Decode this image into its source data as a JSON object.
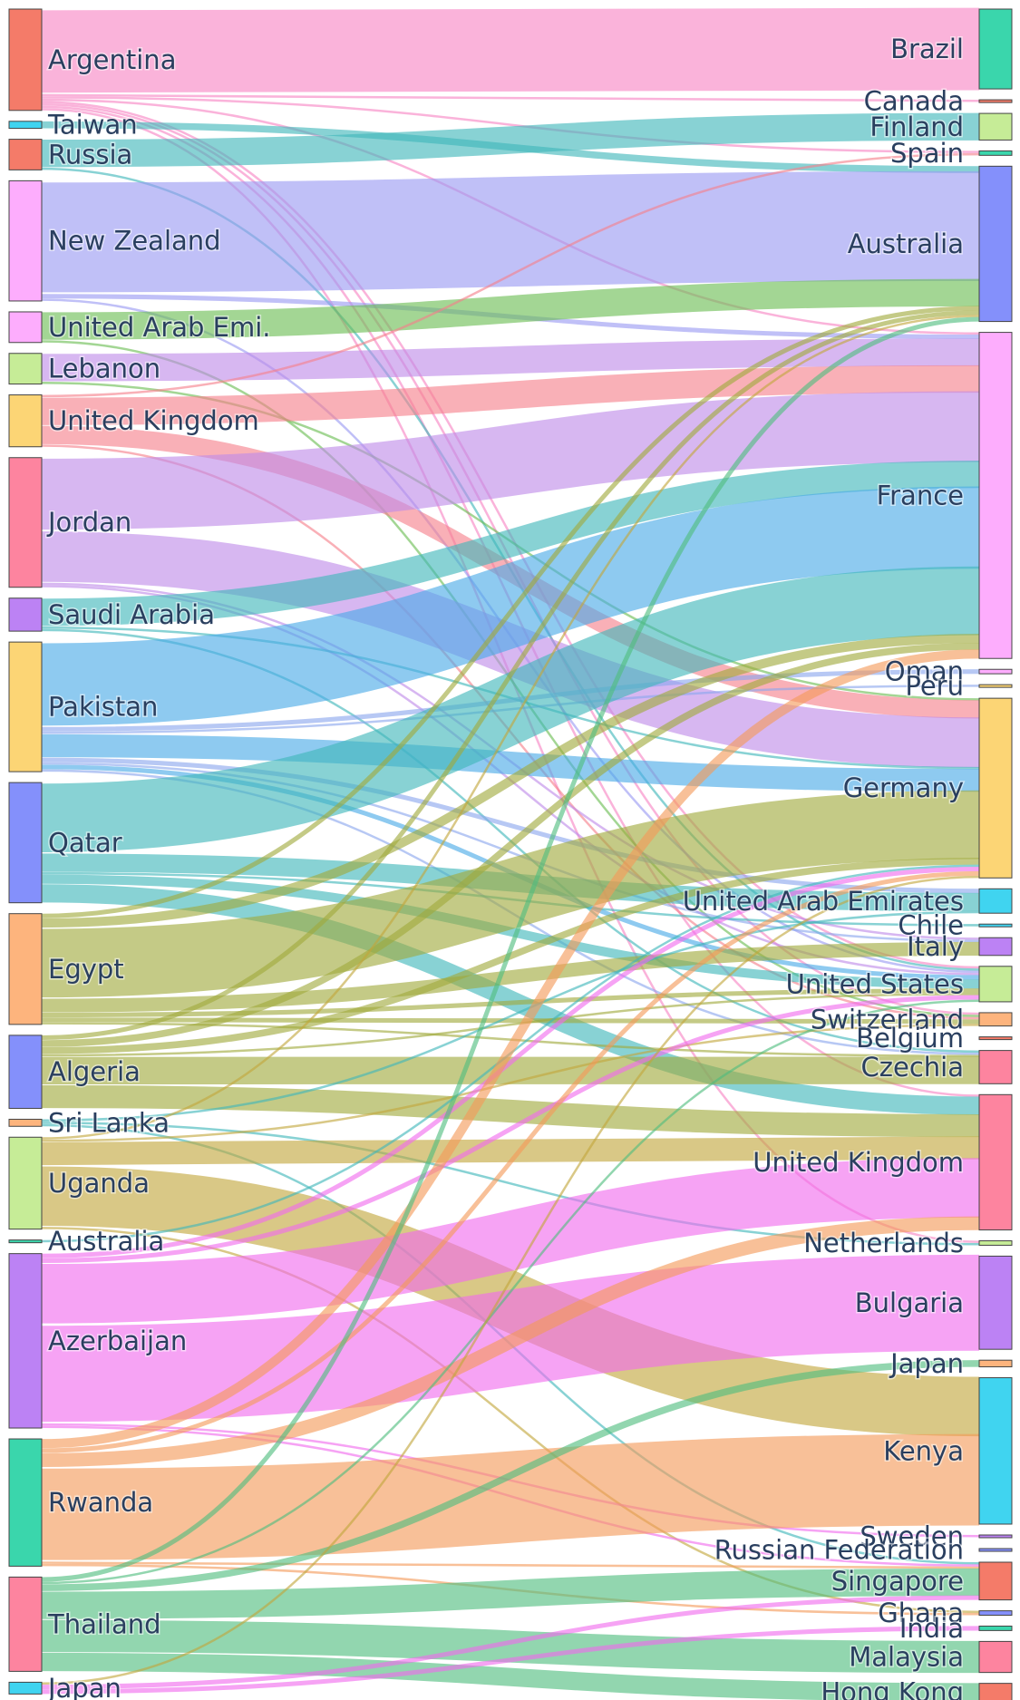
{
  "chart_data": {
    "type": "sankey",
    "title": "",
    "sources": [
      {
        "name": "Argentina",
        "color": "#f47b69"
      },
      {
        "name": "Taiwan",
        "color": "#40d4f0"
      },
      {
        "name": "Russia",
        "color": "#f47b69"
      },
      {
        "name": "New Zealand",
        "color": "#fdadfd"
      },
      {
        "name": "United Arab Emi.",
        "color": "#fdadfd"
      },
      {
        "name": "Lebanon",
        "color": "#c6ec97"
      },
      {
        "name": "United Kingdom",
        "color": "#fcd575"
      },
      {
        "name": "Jordan",
        "color": "#fd849f"
      },
      {
        "name": "Saudi Arabia",
        "color": "#bc82f4"
      },
      {
        "name": "Pakistan",
        "color": "#fcd575"
      },
      {
        "name": "Qatar",
        "color": "#8490fb"
      },
      {
        "name": "Egypt",
        "color": "#fdb47d"
      },
      {
        "name": "Algeria",
        "color": "#8490fb"
      },
      {
        "name": "Sri Lanka",
        "color": "#fdb47d"
      },
      {
        "name": "Uganda",
        "color": "#c6ec97"
      },
      {
        "name": "Australia",
        "color": "#3ad6ac"
      },
      {
        "name": "Azerbaijan",
        "color": "#bc82f4"
      },
      {
        "name": "Rwanda",
        "color": "#3ad6ac"
      },
      {
        "name": "Thailand",
        "color": "#fd849f"
      },
      {
        "name": "Japan",
        "color": "#40d4f0"
      }
    ],
    "targets": [
      {
        "name": "Brazil",
        "color": "#3ad6ac"
      },
      {
        "name": "Canada",
        "color": "#f47b69"
      },
      {
        "name": "Finland",
        "color": "#c6ec97"
      },
      {
        "name": "Spain",
        "color": "#3ad6ac"
      },
      {
        "name": "Australia",
        "color": "#8490fb"
      },
      {
        "name": "France",
        "color": "#fdadfd"
      },
      {
        "name": "Oman",
        "color": "#fdadfd"
      },
      {
        "name": "Peru",
        "color": "#fcd575"
      },
      {
        "name": "Germany",
        "color": "#fcd575"
      },
      {
        "name": "United Arab Emirates",
        "color": "#40d4f0"
      },
      {
        "name": "Chile",
        "color": "#40d4f0"
      },
      {
        "name": "Italy",
        "color": "#bc82f4"
      },
      {
        "name": "United States",
        "color": "#c6ec97"
      },
      {
        "name": "Switzerland",
        "color": "#fdb47d"
      },
      {
        "name": "Belgium",
        "color": "#f47b69"
      },
      {
        "name": "Czechia",
        "color": "#fd849f"
      },
      {
        "name": "United Kingdom",
        "color": "#fd849f"
      },
      {
        "name": "Netherlands",
        "color": "#c6ec97"
      },
      {
        "name": "Bulgaria",
        "color": "#bc82f4"
      },
      {
        "name": "Japan",
        "color": "#fdb47d"
      },
      {
        "name": "Kenya",
        "color": "#40d4f0"
      },
      {
        "name": "Sweden",
        "color": "#bc82f4"
      },
      {
        "name": "Russian Federation",
        "color": "#8490fb"
      },
      {
        "name": "Singapore",
        "color": "#f47b69"
      },
      {
        "name": "Ghana",
        "color": "#8490fb"
      },
      {
        "name": "India",
        "color": "#3ad6ac"
      },
      {
        "name": "Malaysia",
        "color": "#fd849f"
      },
      {
        "name": "Hong Kong",
        "color": "#f47b69"
      }
    ],
    "links": [
      [
        "Argentina",
        "Brazil",
        36,
        "#f785c3"
      ],
      [
        "Argentina",
        "Canada",
        1,
        "#f785c3"
      ],
      [
        "Argentina",
        "Spain",
        1,
        "#f785c3"
      ],
      [
        "Argentina",
        "France",
        1,
        "#f785c3"
      ],
      [
        "Argentina",
        "United States",
        1,
        "#f785c3"
      ],
      [
        "Argentina",
        "Netherlands",
        1,
        "#f785c3"
      ],
      [
        "Argentina",
        "Switzerland",
        1,
        "#f785c3"
      ],
      [
        "Argentina",
        "United Kingdom",
        1,
        "#f785c3"
      ],
      [
        "Taiwan",
        "Australia",
        3,
        "#3fb6ba"
      ],
      [
        "Russia",
        "Finland",
        12,
        "#3fb6ba"
      ],
      [
        "Russia",
        "United States",
        1,
        "#3fb6ba"
      ],
      [
        "New Zealand",
        "Australia",
        48,
        "#9a9af2"
      ],
      [
        "New Zealand",
        "France",
        2,
        "#9a9af2"
      ],
      [
        "New Zealand",
        "United States",
        1,
        "#9a9af2"
      ],
      [
        "United Arab Emi.",
        "Australia",
        12,
        "#6bbd52"
      ],
      [
        "United Arab Emi.",
        "Switzerland",
        1,
        "#6bbd52"
      ],
      [
        "Lebanon",
        "France",
        12,
        "#bf8be8"
      ],
      [
        "Lebanon",
        "Germany",
        1,
        "#6bbd52"
      ],
      [
        "United Kingdom",
        "Spain",
        1,
        "#f5808a"
      ],
      [
        "United Kingdom",
        "France",
        12,
        "#f5808a"
      ],
      [
        "United Kingdom",
        "Germany",
        8,
        "#f5808a"
      ],
      [
        "United Kingdom",
        "Switzerland",
        1,
        "#f5808a"
      ],
      [
        "Jordan",
        "France",
        31,
        "#bf8be8"
      ],
      [
        "Jordan",
        "Germany",
        22,
        "#bf8be8"
      ],
      [
        "Jordan",
        "United States",
        1,
        "#bf8be8"
      ],
      [
        "Jordan",
        "Italy",
        1,
        "#bf8be8"
      ],
      [
        "Saudi Arabia",
        "France",
        12,
        "#3fb6ba"
      ],
      [
        "Saudi Arabia",
        "Czechia",
        1,
        "#3fb6ba"
      ],
      [
        "Saudi Arabia",
        "Germany",
        1,
        "#3fb6ba"
      ],
      [
        "Pakistan",
        "France",
        36,
        "#49a9e6"
      ],
      [
        "Pakistan",
        "Germany",
        10,
        "#49a9e6"
      ],
      [
        "Pakistan",
        "Oman",
        2,
        "#8ba7ee"
      ],
      [
        "Pakistan",
        "Peru",
        1,
        "#8ba7ee"
      ],
      [
        "Pakistan",
        "United Arab Emirates",
        2,
        "#8ba7ee"
      ],
      [
        "Pakistan",
        "Italy",
        1,
        "#8ba7ee"
      ],
      [
        "Pakistan",
        "United States",
        2,
        "#49a9e6"
      ],
      [
        "Pakistan",
        "Czechia",
        1,
        "#8ba7ee"
      ],
      [
        "Qatar",
        "France",
        30,
        "#3fb6ba"
      ],
      [
        "Qatar",
        "United Arab Emirates",
        8,
        "#3fb6ba"
      ],
      [
        "Qatar",
        "United States",
        4,
        "#3fb6ba"
      ],
      [
        "Qatar",
        "United Kingdom",
        8,
        "#3fb6ba"
      ],
      [
        "Qatar",
        "Chile",
        1,
        "#3fb6ba"
      ],
      [
        "Egypt",
        "Germany",
        30,
        "#9fa93b"
      ],
      [
        "Egypt",
        "Australia",
        2,
        "#9fa93b"
      ],
      [
        "Egypt",
        "France",
        4,
        "#9fa93b"
      ],
      [
        "Egypt",
        "Italy",
        6,
        "#9fa93b"
      ],
      [
        "Egypt",
        "United States",
        2,
        "#9fa93b"
      ],
      [
        "Egypt",
        "Switzerland",
        2,
        "#9fa93b"
      ],
      [
        "Egypt",
        "Czechia",
        1,
        "#9fa93b"
      ],
      [
        "Algeria",
        "France",
        3,
        "#9fa93b"
      ],
      [
        "Algeria",
        "Germany",
        3,
        "#9fa93b"
      ],
      [
        "Algeria",
        "Czechia",
        12,
        "#9fa93b"
      ],
      [
        "Algeria",
        "United Kingdom",
        10,
        "#9fa93b"
      ],
      [
        "Algeria",
        "United States",
        1,
        "#9fa93b"
      ],
      [
        "Algeria",
        "Australia",
        2,
        "#9fa93b"
      ],
      [
        "Sri Lanka",
        "United Arab Emirates",
        1,
        "#3fb6ba"
      ],
      [
        "Sri Lanka",
        "Netherlands",
        1,
        "#3fb6ba"
      ],
      [
        "Sri Lanka",
        "Singapore",
        1,
        "#3fb6ba"
      ],
      [
        "Uganda",
        "United Kingdom",
        10,
        "#c1a63b"
      ],
      [
        "Uganda",
        "Kenya",
        26,
        "#c1a63b"
      ],
      [
        "Uganda",
        "Australia",
        1,
        "#c1a63b"
      ],
      [
        "Uganda",
        "Switzerland",
        1,
        "#c1a63b"
      ],
      [
        "Uganda",
        "Ghana",
        1,
        "#c1a63b"
      ],
      [
        "Australia",
        "Germany",
        1,
        "#3fb6ba"
      ],
      [
        "Azerbaijan",
        "United Kingdom",
        26,
        "#f06bed"
      ],
      [
        "Azerbaijan",
        "Bulgaria",
        42,
        "#f06bed"
      ],
      [
        "Azerbaijan",
        "Germany",
        2,
        "#f06bed"
      ],
      [
        "Azerbaijan",
        "United States",
        2,
        "#f06bed"
      ],
      [
        "Azerbaijan",
        "Sweden",
        1,
        "#f06bed"
      ],
      [
        "Azerbaijan",
        "Singapore",
        1,
        "#f06bed"
      ],
      [
        "Rwanda",
        "Kenya",
        40,
        "#f39a58"
      ],
      [
        "Rwanda",
        "United Kingdom",
        6,
        "#f39a58"
      ],
      [
        "Rwanda",
        "France",
        4,
        "#f39a58"
      ],
      [
        "Rwanda",
        "Germany",
        2,
        "#f39a58"
      ],
      [
        "Rwanda",
        "Singapore",
        1,
        "#f39a58"
      ],
      [
        "Rwanda",
        "Ghana",
        1,
        "#f39a58"
      ],
      [
        "Thailand",
        "Singapore",
        12,
        "#4fbd7e"
      ],
      [
        "Thailand",
        "Malaysia",
        14,
        "#4fbd7e"
      ],
      [
        "Thailand",
        "Hong Kong",
        8,
        "#4fbd7e"
      ],
      [
        "Thailand",
        "Australia",
        2,
        "#4fbd7e"
      ],
      [
        "Thailand",
        "Japan",
        3,
        "#4fbd7e"
      ],
      [
        "Thailand",
        "United States",
        1,
        "#4fbd7e"
      ],
      [
        "Japan",
        "India",
        2,
        "#f06bed"
      ],
      [
        "Japan",
        "Singapore",
        2,
        "#f06bed"
      ],
      [
        "Japan",
        "Germany",
        1,
        "#c1a63b"
      ]
    ]
  }
}
